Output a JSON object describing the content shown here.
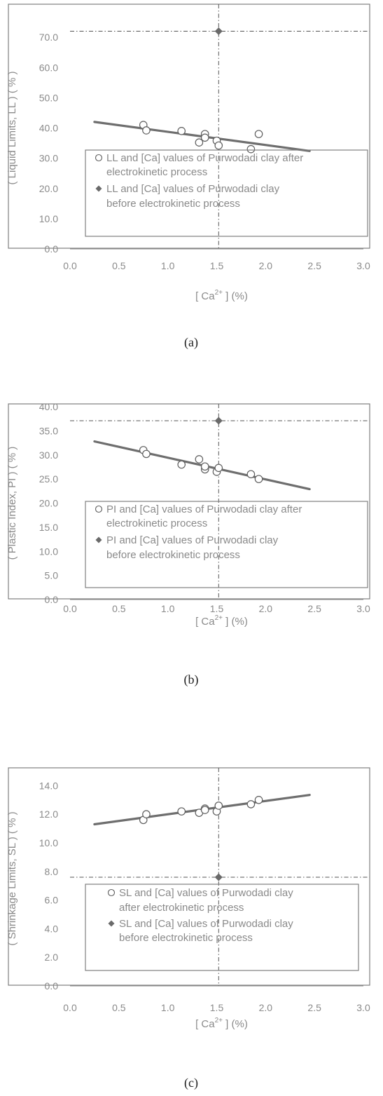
{
  "chart_data": [
    {
      "type": "scatter",
      "panel_label": "(a)",
      "xlabel": {
        "main": "[ Ca",
        "sup": "2+",
        "tail": " ] (%)"
      },
      "ylabel": "( Liquid Limits, LL ) ( % )",
      "xlim": [
        0,
        3
      ],
      "ylim": [
        0,
        80
      ],
      "xticks": [
        "0.0",
        "0.5",
        "1.0",
        "1.5",
        "2.0",
        "2.5",
        "3.0"
      ],
      "yticks": [
        "0.0",
        "10.0",
        "20.0",
        "30.0",
        "40.0",
        "50.0",
        "60.0",
        "70.0"
      ],
      "ytick_values": [
        0,
        10,
        20,
        30,
        40,
        50,
        60,
        70
      ],
      "series": [
        {
          "name": "after",
          "legend_lines": [
            "LL and [Ca] values of Purwodadi clay after",
            "electrokinetic process"
          ],
          "marker": "open-circle",
          "points": [
            [
              0.75,
              41.0
            ],
            [
              0.78,
              39.2
            ],
            [
              1.14,
              39.0
            ],
            [
              1.32,
              35.2
            ],
            [
              1.38,
              38.0
            ],
            [
              1.38,
              36.8
            ],
            [
              1.5,
              35.8
            ],
            [
              1.52,
              34.2
            ],
            [
              1.85,
              33.0
            ],
            [
              1.93,
              38.0
            ]
          ]
        },
        {
          "name": "before",
          "legend_lines": [
            "LL and [Ca] values of Purwodadi clay",
            "before electrokinetic process"
          ],
          "marker": "filled-diamond",
          "points": [
            [
              1.52,
              72.0
            ]
          ]
        }
      ],
      "trendline": {
        "x": [
          0.25,
          2.45
        ],
        "y": [
          42.0,
          32.4
        ]
      },
      "reference": {
        "x": 1.52,
        "y": 72.0
      }
    },
    {
      "type": "scatter",
      "panel_label": "(b)",
      "xlabel": {
        "main": "[ Ca",
        "sup": "2+",
        "tail": " ] (%)"
      },
      "ylabel": "( Plastic Index, PI ) ( % )",
      "xlim": [
        0,
        3
      ],
      "ylim": [
        0,
        40
      ],
      "xticks": [
        "0.0",
        "0.5",
        "1.0",
        "1.5",
        "2.0",
        "2.5",
        "3.0"
      ],
      "yticks": [
        "0.0",
        "5.0",
        "10.0",
        "15.0",
        "20.0",
        "25.0",
        "30.0",
        "35.0",
        "40.0"
      ],
      "ytick_values": [
        0,
        5,
        10,
        15,
        20,
        25,
        30,
        35,
        40
      ],
      "series": [
        {
          "name": "after",
          "legend_lines": [
            "PI and [Ca] values of Purwodadi clay after",
            "electrokinetic process"
          ],
          "marker": "open-circle",
          "points": [
            [
              0.75,
              31.0
            ],
            [
              0.78,
              30.2
            ],
            [
              1.14,
              28.0
            ],
            [
              1.32,
              29.1
            ],
            [
              1.38,
              27.0
            ],
            [
              1.38,
              27.6
            ],
            [
              1.5,
              26.5
            ],
            [
              1.52,
              27.3
            ],
            [
              1.85,
              26.0
            ],
            [
              1.93,
              25.0
            ]
          ]
        },
        {
          "name": "before",
          "legend_lines": [
            "PI and [Ca] values of Purwodadi clay",
            "before electrokinetic process"
          ],
          "marker": "filled-diamond",
          "points": [
            [
              1.52,
              37.1
            ]
          ]
        }
      ],
      "trendline": {
        "x": [
          0.25,
          2.45
        ],
        "y": [
          32.8,
          22.9
        ]
      },
      "reference": {
        "x": 1.52,
        "y": 37.1
      }
    },
    {
      "type": "scatter",
      "panel_label": "(c)",
      "xlabel": {
        "main": "[ Ca",
        "sup": "2+",
        "tail": " ] (%)"
      },
      "ylabel": "( Shrinkage Limits, SL ) ( % )",
      "xlim": [
        0,
        3
      ],
      "ylim": [
        0,
        15
      ],
      "xticks": [
        "0.0",
        "0.5",
        "1.0",
        "1.5",
        "2.0",
        "2.5",
        "3.0"
      ],
      "yticks": [
        "0.0",
        "2.0",
        "4.0",
        "6.0",
        "8.0",
        "10.0",
        "12.0",
        "14.0"
      ],
      "ytick_values": [
        0,
        2,
        4,
        6,
        8,
        10,
        12,
        14
      ],
      "series": [
        {
          "name": "after",
          "legend_lines": [
            "SL and [Ca] values of Purwodadi clay",
            "after electrokinetic process"
          ],
          "marker": "open-circle",
          "points": [
            [
              0.75,
              11.6
            ],
            [
              0.78,
              12.0
            ],
            [
              1.14,
              12.2
            ],
            [
              1.32,
              12.1
            ],
            [
              1.38,
              12.4
            ],
            [
              1.38,
              12.3
            ],
            [
              1.5,
              12.2
            ],
            [
              1.52,
              12.6
            ],
            [
              1.85,
              12.7
            ],
            [
              1.93,
              13.0
            ]
          ]
        },
        {
          "name": "before",
          "legend_lines": [
            "SL and [Ca] values of Purwodadi clay",
            "before electrokinetic process"
          ],
          "marker": "filled-diamond",
          "points": [
            [
              1.52,
              7.6
            ]
          ]
        }
      ],
      "trendline": {
        "x": [
          0.25,
          2.45
        ],
        "y": [
          11.3,
          13.35
        ]
      },
      "reference": {
        "x": 1.52,
        "y": 7.6
      }
    }
  ]
}
